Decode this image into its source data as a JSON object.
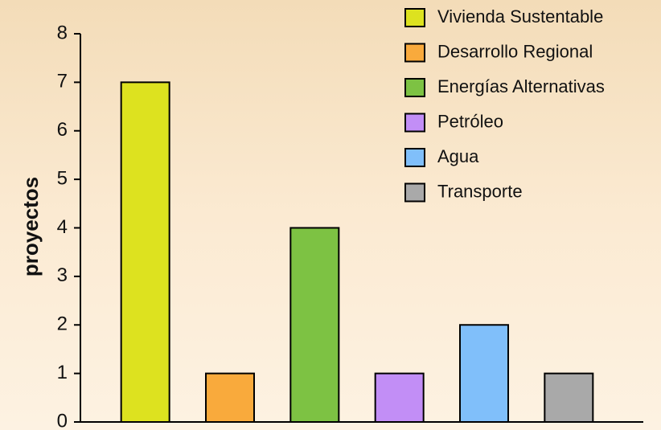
{
  "chart_data": {
    "type": "bar",
    "categories": [
      "Vivienda Sustentable",
      "Desarrollo Regional",
      "Energías Alternativas",
      "Petróleo",
      "Agua",
      "Transporte"
    ],
    "values": [
      7,
      1,
      4,
      1,
      2,
      1
    ],
    "colors": [
      "#dde21f",
      "#f9aa3c",
      "#7dc243",
      "#c28ef6",
      "#80bffa",
      "#a9a9a9"
    ],
    "ylabel": "proyectos",
    "ylim": [
      0,
      8
    ],
    "yticks": [
      0,
      1,
      2,
      3,
      4,
      5,
      6,
      7,
      8
    ],
    "grid": false,
    "legend": "top-right"
  }
}
